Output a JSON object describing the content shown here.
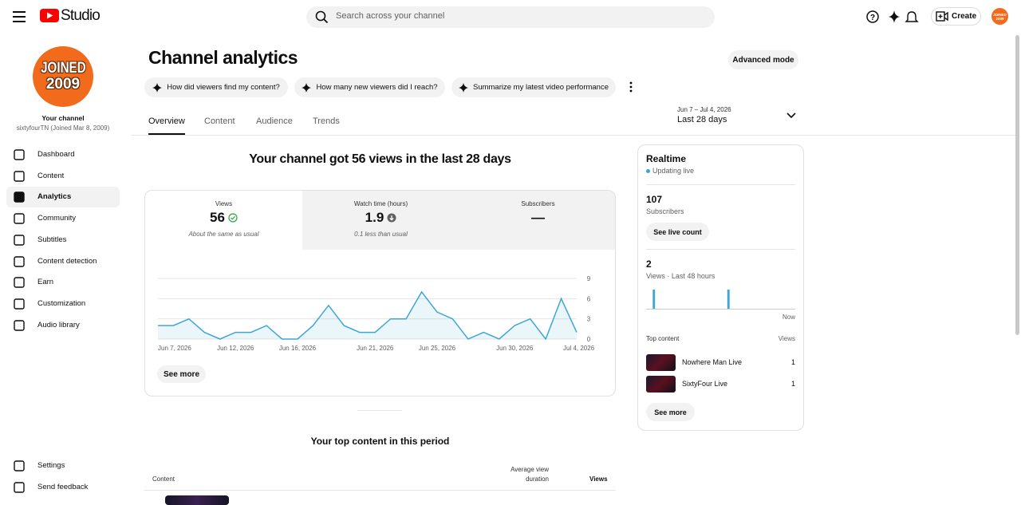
{
  "header": {
    "brand": "Studio",
    "search_placeholder": "Search across your channel",
    "create": "Create",
    "avatar": [
      "JOINED",
      "2009"
    ]
  },
  "sidebar": {
    "channel_label": "Your channel",
    "channel_name": "sixtyfourTN (Joined Mar 8, 2009)",
    "nav": [
      "Dashboard",
      "Content",
      "Analytics",
      "Community",
      "Subtitles",
      "Content detection",
      "Earn",
      "Customization",
      "Audio library"
    ],
    "active": 2,
    "footer_nav": [
      "Settings",
      "Send feedback"
    ]
  },
  "page": {
    "title": "Channel analytics",
    "advanced_mode": "Advanced mode",
    "suggestions": [
      "How did viewers find my content?",
      "How many new viewers did I reach?",
      "Summarize my latest video performance"
    ],
    "tabs": [
      "Overview",
      "Content",
      "Audience",
      "Trends"
    ],
    "active_tab": 0,
    "date_range": "Jun 7 – Jul 4, 2026",
    "period": "Last 28 days",
    "headline": "Your channel got 56 views in the last 28 days",
    "metrics": [
      {
        "label": "Views",
        "value": 56,
        "note": "About the same as usual"
      },
      {
        "label": "Watch time (hours)",
        "value": 1.9,
        "note": "0.1 less than usual"
      },
      {
        "label": "Subscribers",
        "value": "—"
      }
    ],
    "selected_metric": 0,
    "see_more": "See more",
    "top_content_title": "Your top content in this period",
    "table_headers": [
      "Content",
      "Average view duration",
      "Views"
    ]
  },
  "realtime": {
    "title": "Realtime",
    "status": "Updating live",
    "subscribers": 107,
    "subscribers_label": "Subscribers",
    "live_count": "See live count",
    "views": 2,
    "views_label": "Views · Last 48 hours",
    "top_content_label": "Top content",
    "views_header": "Views",
    "items": [
      {
        "title": "Nowhere Man Live",
        "views": 1
      },
      {
        "title": "SixtyFour Live",
        "views": 1
      }
    ],
    "see_more": "See more"
  },
  "chart_data": [
    {
      "type": "line",
      "color": "#3ea6d6",
      "x": [
        "Jun 7, 2026",
        "Jun 8, 2026",
        "Jun 9, 2026",
        "Jun 10, 2026",
        "Jun 11, 2026",
        "Jun 12, 2026",
        "Jun 13, 2026",
        "Jun 14, 2026",
        "Jun 15, 2026",
        "Jun 16, 2026",
        "Jun 17, 2026",
        "Jun 18, 2026",
        "Jun 19, 2026",
        "Jun 20, 2026",
        "Jun 21, 2026",
        "Jun 22, 2026",
        "Jun 23, 2026",
        "Jun 24, 2026",
        "Jun 25, 2026",
        "Jun 26, 2026",
        "Jun 27, 2026",
        "Jun 28, 2026",
        "Jun 29, 2026",
        "Jun 30, 2026",
        "Jul 1, 2026",
        "Jul 2, 2026",
        "Jul 3, 2026",
        "Jul 4, 2026"
      ],
      "values": [
        2,
        2,
        3,
        1,
        0,
        1,
        1,
        2,
        0,
        0,
        2,
        5,
        2,
        1,
        1,
        3,
        3,
        7,
        4,
        3,
        0,
        1,
        0,
        2,
        3,
        0,
        6,
        1
      ],
      "xticks": [
        "Jun 7, 2026",
        "Jun 12, 2026",
        "Jun 16, 2026",
        "Jun 21, 2026",
        "Jun 25, 2026",
        "Jun 30, 2026",
        "Jul 4, 2026"
      ],
      "ylim": [
        0,
        9
      ],
      "yticks": [
        0,
        3,
        6,
        9
      ],
      "grid": true
    },
    {
      "type": "bar",
      "color": "#3ea6d6",
      "categories": [
        null,
        null,
        null,
        null,
        null,
        null,
        null,
        null,
        null,
        null,
        null,
        null,
        null,
        null,
        null,
        null,
        null,
        null,
        null,
        null,
        null,
        null,
        null,
        null,
        null,
        null,
        null,
        null,
        null,
        null,
        null,
        null,
        null,
        null,
        null,
        null,
        null,
        null,
        null,
        null,
        null,
        null,
        null,
        null,
        null,
        null,
        null,
        "Now"
      ],
      "values": [
        0,
        0,
        1,
        0,
        0,
        0,
        0,
        0,
        0,
        0,
        0,
        0,
        0,
        0,
        0,
        0,
        0,
        0,
        0,
        0,
        0,
        0,
        0,
        0,
        0,
        0,
        1,
        0,
        0,
        0,
        0,
        0,
        0,
        0,
        0,
        0,
        0,
        0,
        0,
        0,
        0,
        0,
        0,
        0,
        0,
        0,
        0,
        0
      ],
      "ylim": [
        0,
        1
      ]
    }
  ]
}
